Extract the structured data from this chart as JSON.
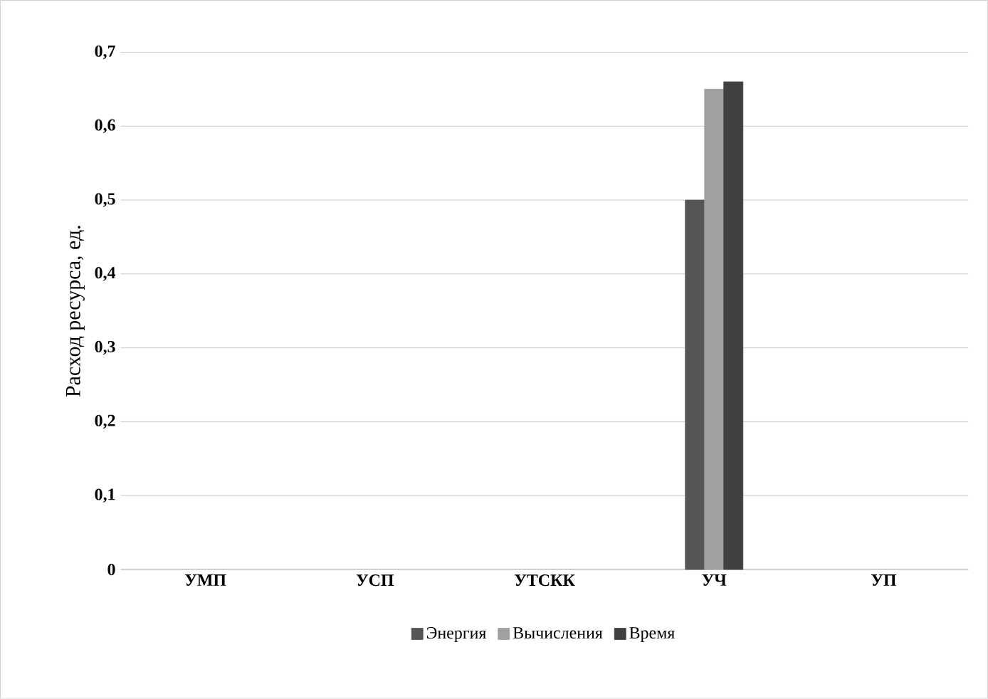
{
  "chart_data": {
    "type": "bar",
    "ylabel": "Расход ресурса, ед.",
    "categories": [
      "УМП",
      "УСП",
      "УТСКК",
      "УЧ",
      "УП"
    ],
    "series": [
      {
        "name": "Энергия",
        "color": "#555555",
        "values": [
          null,
          null,
          null,
          0.5,
          null
        ]
      },
      {
        "name": "Вычисления",
        "color": "#a0a0a0",
        "values": [
          null,
          null,
          null,
          0.65,
          null
        ]
      },
      {
        "name": "Время",
        "color": "#404040",
        "values": [
          null,
          null,
          null,
          0.66,
          null
        ]
      }
    ],
    "ylim": [
      0,
      0.7
    ],
    "yticks": [
      0,
      {
        "value": 0.1,
        "label": "0,1"
      },
      {
        "value": 0.2,
        "label": "0,2"
      },
      {
        "value": 0.3,
        "label": "0,3"
      },
      {
        "value": 0.4,
        "label": "0,4"
      },
      {
        "value": 0.5,
        "label": "0,5"
      },
      {
        "value": 0.6,
        "label": "0,6"
      },
      {
        "value": 0.7,
        "label": "0,7"
      }
    ],
    "grid": "y",
    "legend": "bottom"
  }
}
